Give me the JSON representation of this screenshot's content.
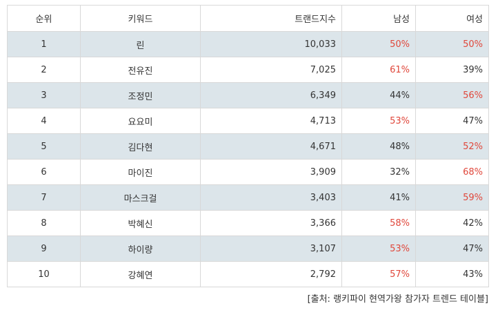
{
  "headers": {
    "rank": "순위",
    "keyword": "키워드",
    "trend_index": "트랜드지수",
    "male": "남성",
    "female": "여성"
  },
  "rows": [
    {
      "rank": "1",
      "keyword": "린",
      "trend_index": "10,033",
      "male": "50%",
      "female": "50%",
      "male_hl": true,
      "female_hl": true
    },
    {
      "rank": "2",
      "keyword": "전유진",
      "trend_index": "7,025",
      "male": "61%",
      "female": "39%",
      "male_hl": true,
      "female_hl": false
    },
    {
      "rank": "3",
      "keyword": "조정민",
      "trend_index": "6,349",
      "male": "44%",
      "female": "56%",
      "male_hl": false,
      "female_hl": true
    },
    {
      "rank": "4",
      "keyword": "요요미",
      "trend_index": "4,713",
      "male": "53%",
      "female": "47%",
      "male_hl": true,
      "female_hl": false
    },
    {
      "rank": "5",
      "keyword": "김다현",
      "trend_index": "4,671",
      "male": "48%",
      "female": "52%",
      "male_hl": false,
      "female_hl": true
    },
    {
      "rank": "6",
      "keyword": "마이진",
      "trend_index": "3,909",
      "male": "32%",
      "female": "68%",
      "male_hl": false,
      "female_hl": true
    },
    {
      "rank": "7",
      "keyword": "마스크걸",
      "trend_index": "3,403",
      "male": "41%",
      "female": "59%",
      "male_hl": false,
      "female_hl": true
    },
    {
      "rank": "8",
      "keyword": "박혜신",
      "trend_index": "3,366",
      "male": "58%",
      "female": "42%",
      "male_hl": true,
      "female_hl": false
    },
    {
      "rank": "9",
      "keyword": "하이량",
      "trend_index": "3,107",
      "male": "53%",
      "female": "47%",
      "male_hl": true,
      "female_hl": false
    },
    {
      "rank": "10",
      "keyword": "강혜연",
      "trend_index": "2,792",
      "male": "57%",
      "female": "43%",
      "male_hl": true,
      "female_hl": false
    }
  ],
  "source": "[출처: 랭키파이 현역가왕 참가자 트렌드 테이블]",
  "colors": {
    "shaded_row": "#dce5ea",
    "highlight": "#e0473b",
    "border": "#d8d8d8"
  }
}
